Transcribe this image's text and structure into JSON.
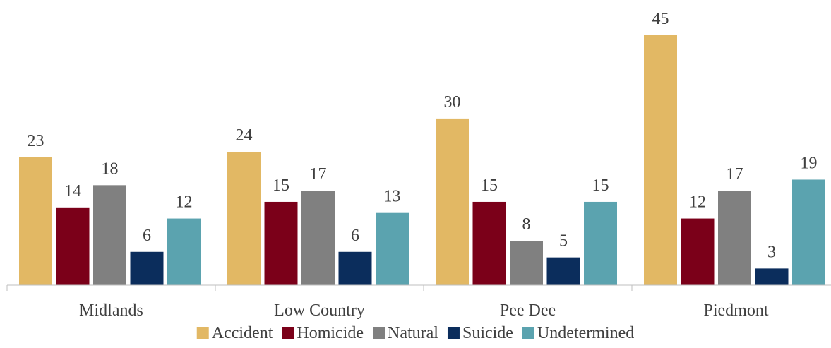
{
  "chart_data": {
    "type": "bar",
    "title": "",
    "xlabel": "",
    "ylabel": "",
    "ylim": [
      0,
      50
    ],
    "grid": false,
    "legend_position": "bottom",
    "categories": [
      "Midlands",
      "Low Country",
      "Pee Dee",
      "Piedmont"
    ],
    "series": [
      {
        "name": "Accident",
        "color": "#E2B864",
        "values": [
          23,
          24,
          30,
          45
        ]
      },
      {
        "name": "Homicide",
        "color": "#7B0019",
        "values": [
          14,
          15,
          15,
          12
        ]
      },
      {
        "name": "Natural",
        "color": "#808080",
        "values": [
          18,
          17,
          8,
          17
        ]
      },
      {
        "name": "Suicide",
        "color": "#0B2D5C",
        "values": [
          6,
          6,
          5,
          3
        ]
      },
      {
        "name": "Undetermined",
        "color": "#5BA3AF",
        "values": [
          12,
          13,
          15,
          19
        ]
      }
    ]
  }
}
